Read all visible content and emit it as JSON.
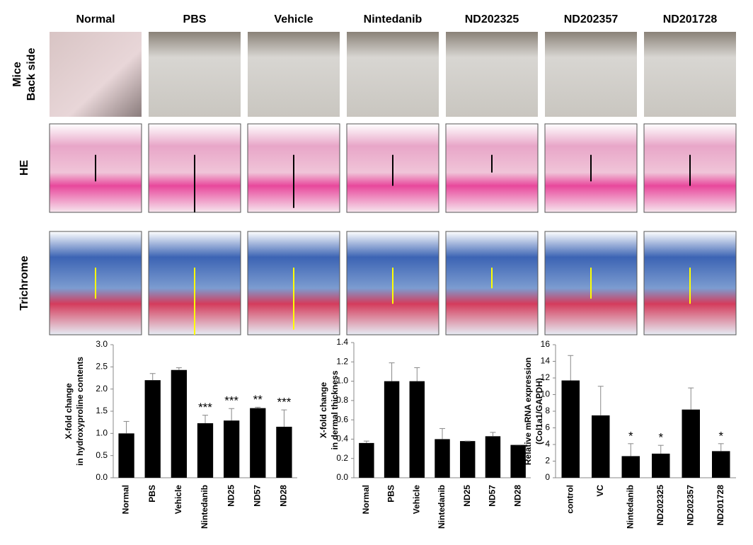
{
  "column_headers": [
    "Normal",
    "PBS",
    "Vehicle",
    "Nintedanib",
    "ND202325",
    "ND202357",
    "ND201728"
  ],
  "row_labels": [
    [
      "Mice",
      "Back side"
    ],
    [
      "HE"
    ],
    [
      "Trichrome"
    ]
  ],
  "chart_data": [
    {
      "type": "bar",
      "ylabel": [
        "X-fold change",
        "in hydroxyproline contents"
      ],
      "categories": [
        "Normal",
        "PBS",
        "Vehicle",
        "Nintedanib",
        "ND25",
        "ND57",
        "ND28"
      ],
      "values": [
        1.0,
        2.2,
        2.43,
        1.23,
        1.29,
        1.57,
        1.15
      ],
      "errors": [
        0.27,
        0.15,
        0.05,
        0.18,
        0.27,
        0.02,
        0.38
      ],
      "significance": [
        null,
        null,
        null,
        "***",
        "***",
        "**",
        "***"
      ],
      "color": "#000000",
      "ylim": [
        0,
        3
      ],
      "yticks": [
        {
          "value": 0,
          "label": "0.0"
        },
        0.5,
        {
          "value": 1,
          "label": "1.0"
        },
        1.5,
        {
          "value": 2,
          "label": "2.0"
        },
        2.5,
        {
          "value": 3,
          "label": "3.0"
        }
      ]
    },
    {
      "type": "bar",
      "ylabel": [
        "X-fold change",
        "in dermal thickness"
      ],
      "categories": [
        "Normal",
        "PBS",
        "Vehicle",
        "Nintedanib",
        "ND25",
        "ND57",
        "ND28"
      ],
      "values": [
        0.36,
        1.0,
        1.0,
        0.4,
        0.38,
        0.43,
        0.34
      ],
      "errors": [
        0.02,
        0.19,
        0.14,
        0.11,
        0,
        0.04,
        0
      ],
      "color": "#000000",
      "ylim": [
        0,
        1.4
      ],
      "yticks": [
        {
          "value": 0,
          "label": "0.0"
        },
        0.2,
        0.4,
        0.6,
        0.8,
        {
          "value": 1,
          "label": "1.0"
        },
        1.2,
        1.4
      ]
    },
    {
      "type": "bar",
      "ylabel": [
        "Relative mRNA expression",
        "(Col1a1/GAPDH)"
      ],
      "categories": [
        "control",
        "VC",
        "Nintedanib",
        "ND202325",
        "ND202357",
        "ND201728"
      ],
      "values": [
        11.7,
        7.5,
        2.6,
        2.9,
        8.2,
        3.2
      ],
      "errors": [
        3.0,
        3.5,
        1.5,
        1.0,
        2.6,
        0.9
      ],
      "significance": [
        null,
        null,
        "*",
        "*",
        null,
        "*"
      ],
      "color": "#000000",
      "ylim": [
        0,
        16
      ],
      "yticks": [
        0,
        2,
        4,
        6,
        8,
        10,
        12,
        14,
        16
      ]
    }
  ]
}
